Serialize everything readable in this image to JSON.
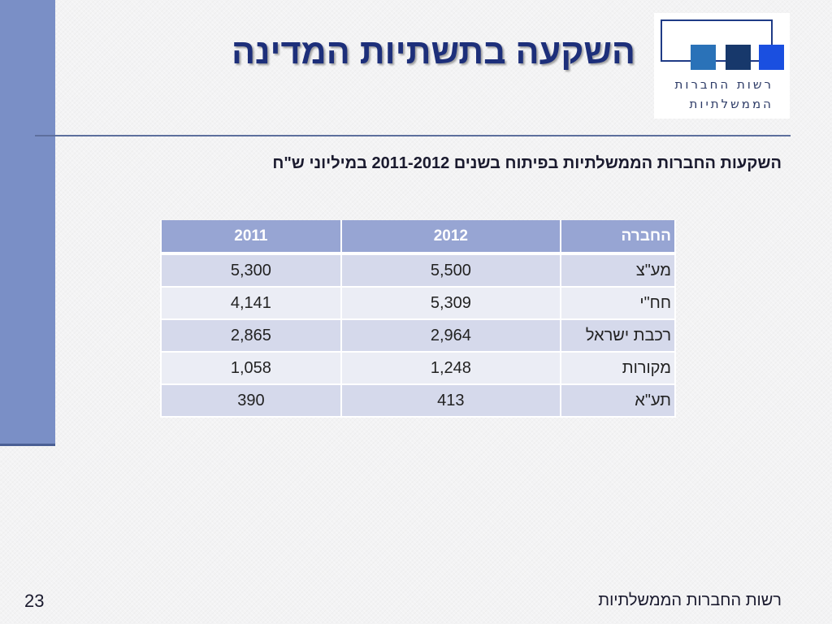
{
  "slide": {
    "title": "השקעה בתשתיות המדינה",
    "subtitle": "השקעות החברות הממשלתיות בפיתוח בשנים  2011-2012 במיליוני ש\"ח",
    "page_number": "23",
    "footer": "רשות החברות הממשלתיות"
  },
  "logo": {
    "line1": "רשות החברות",
    "line2": "הממשלתיות",
    "colors": [
      "#2a72b8",
      "#17386b",
      "#1a4fe0"
    ]
  },
  "table": {
    "headers": {
      "company": "החברה",
      "y2012": "2012",
      "y2011": "2011"
    },
    "rows": [
      {
        "company": "מע\"צ",
        "y2012": "5,500",
        "y2011": "5,300"
      },
      {
        "company": "חח\"י",
        "y2012": "5,309",
        "y2011": "4,141"
      },
      {
        "company": "רכבת ישראל",
        "y2012": "2,964",
        "y2011": "2,865"
      },
      {
        "company": "מקורות",
        "y2012": "1,248",
        "y2011": "1,058"
      },
      {
        "company": "תע\"א",
        "y2012": "413",
        "y2011": "390"
      }
    ]
  },
  "colors": {
    "accent": "#7a8fc6",
    "title": "#1d2f7a",
    "header_bg": "#97a5d3"
  }
}
